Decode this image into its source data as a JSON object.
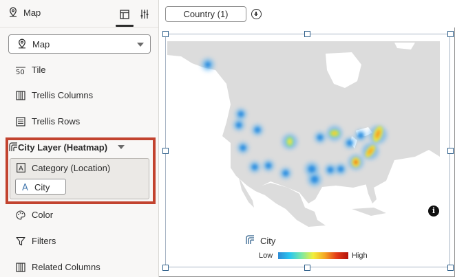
{
  "left_panel": {
    "title": "Map",
    "visualization_select": "Map",
    "rows": [
      "Tile",
      "Trellis Columns",
      "Trellis Rows"
    ],
    "layer": {
      "title": "City Layer (Heatmap)",
      "drop_zone_label": "Category (Location)",
      "pill_label": "City"
    },
    "bottom_rows": [
      "Color",
      "Filters",
      "Related Columns"
    ]
  },
  "topbar": {
    "filter_pill": "Country (1)"
  },
  "canvas": {
    "info_label": "i",
    "legend": {
      "title": "City",
      "low": "Low",
      "high": "High"
    }
  },
  "colors": {
    "highlight_border": "#c2432f",
    "map_land": "#dcdcdc",
    "selection_handle": "#2e5f8a"
  }
}
